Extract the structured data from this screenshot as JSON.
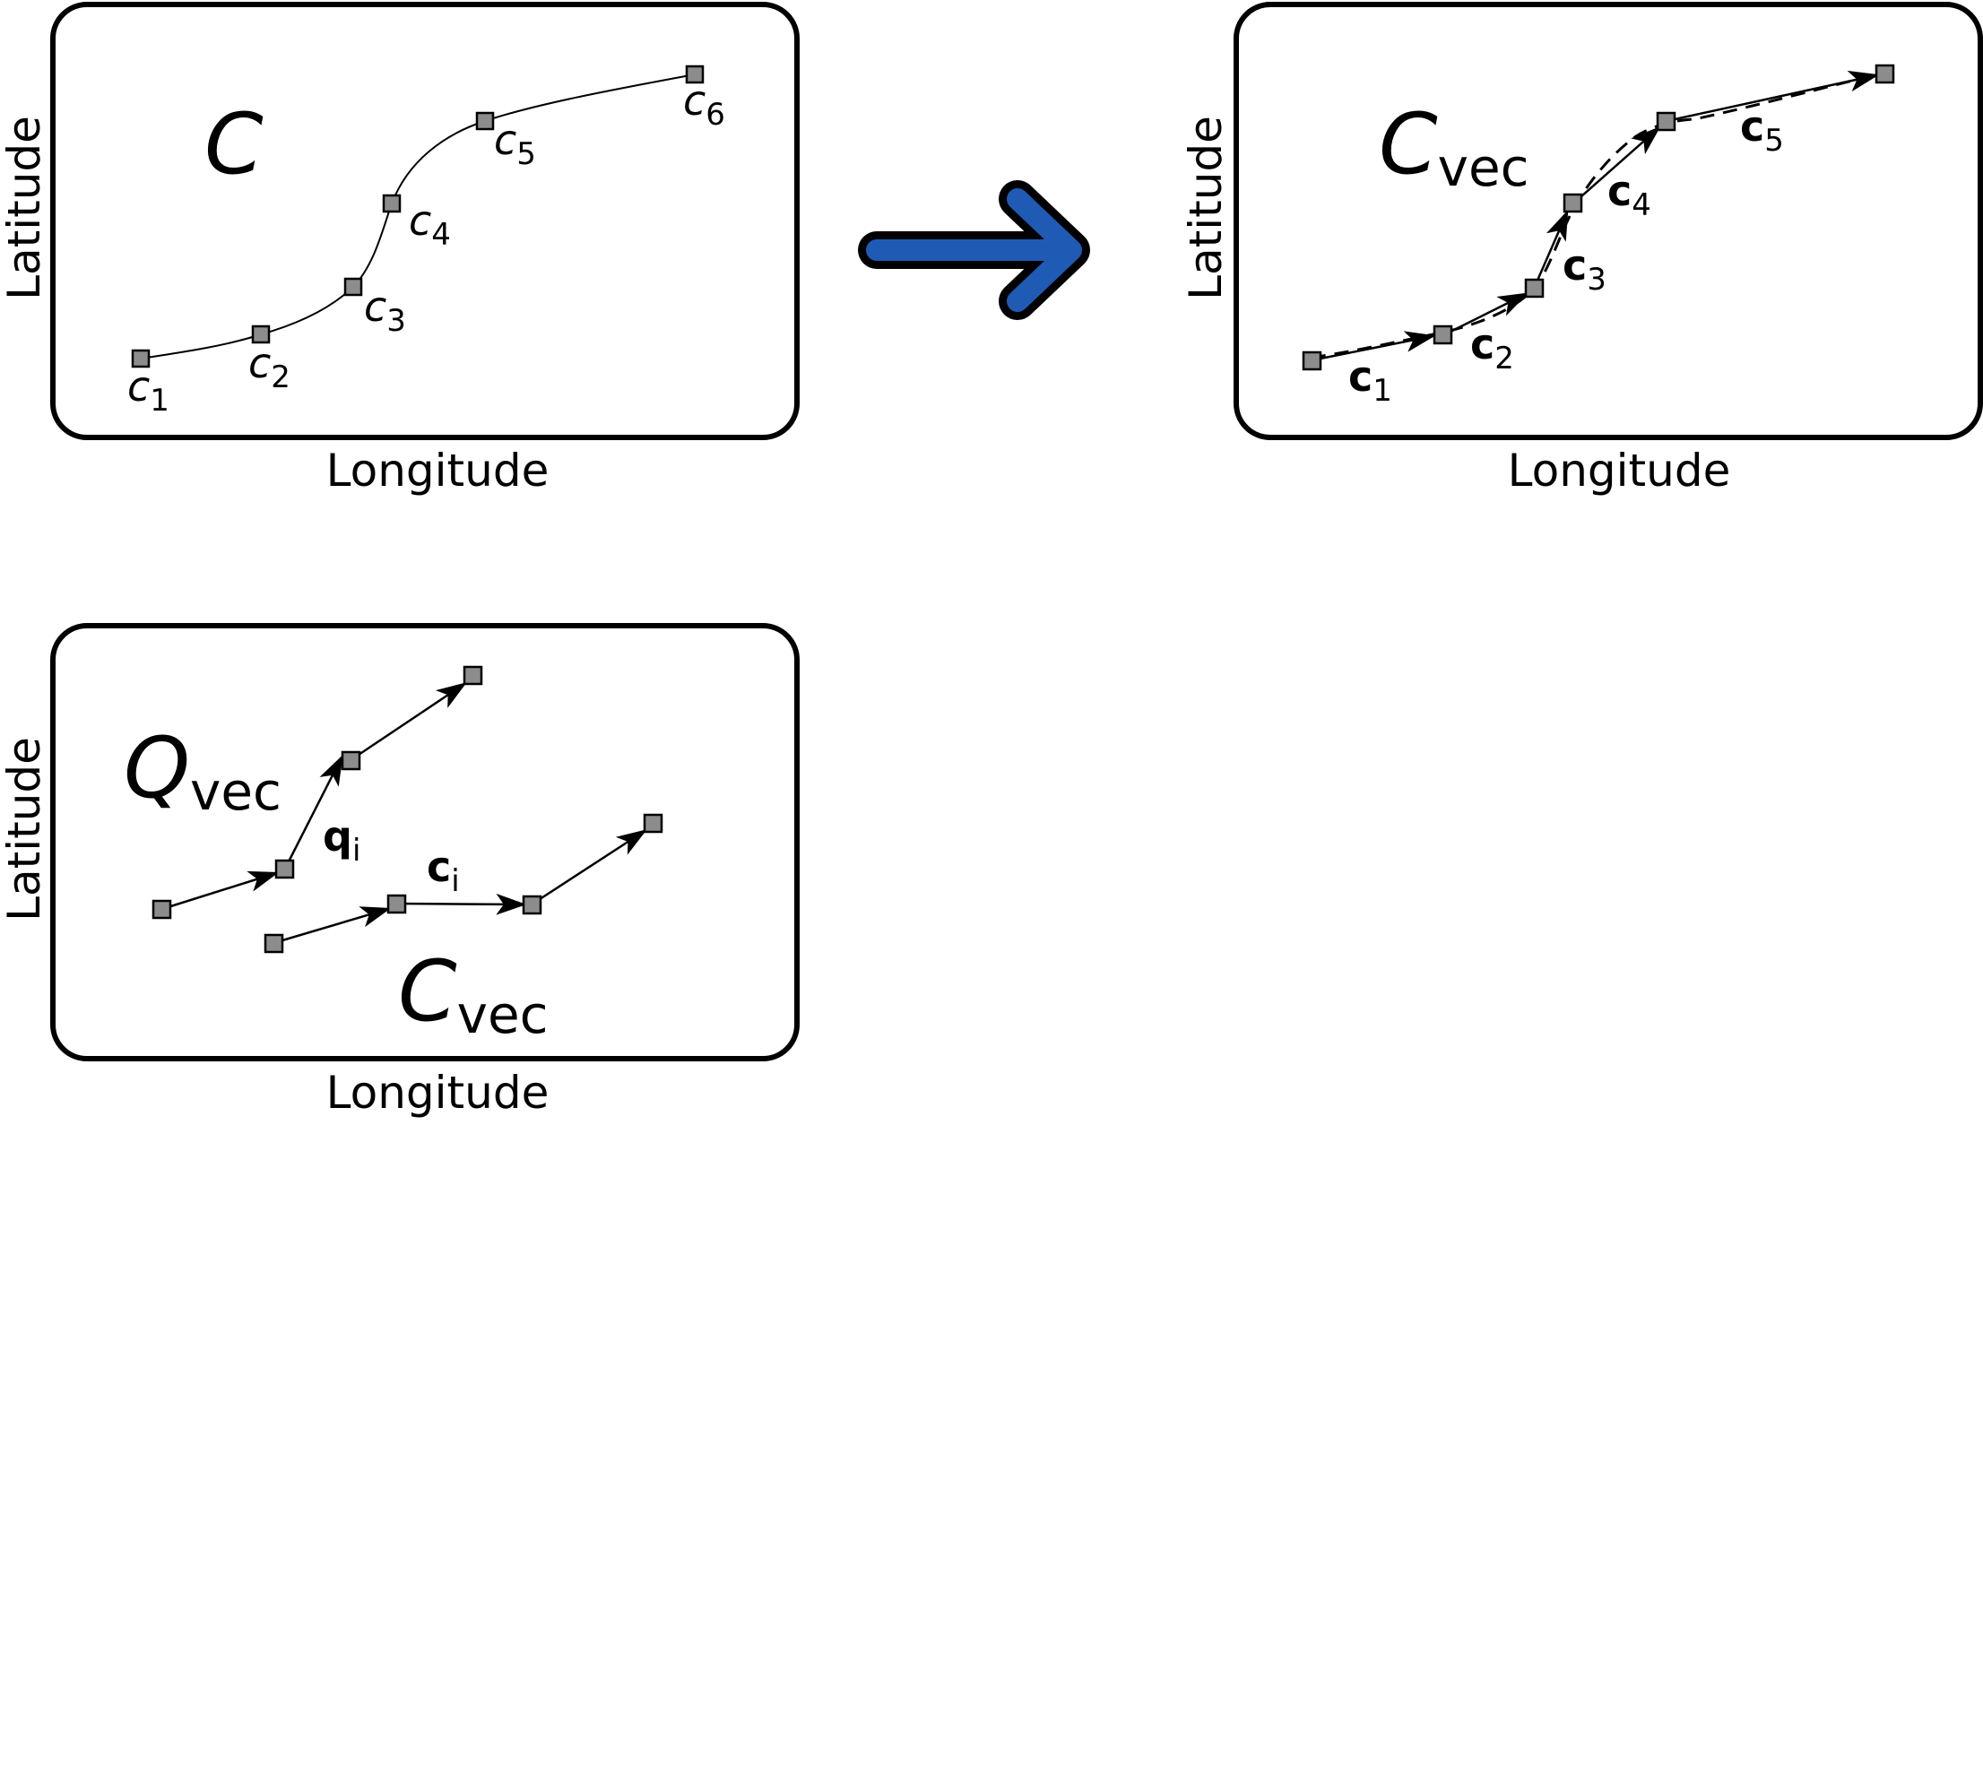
{
  "axes": {
    "x_label": "Longitude",
    "y_label": "Latitude"
  },
  "panel_a": {
    "title": "C",
    "points": [
      {
        "base": "c",
        "sub": "1"
      },
      {
        "base": "c",
        "sub": "2"
      },
      {
        "base": "c",
        "sub": "3"
      },
      {
        "base": "c",
        "sub": "4"
      },
      {
        "base": "c",
        "sub": "5"
      },
      {
        "base": "c",
        "sub": "6"
      }
    ]
  },
  "panel_b": {
    "title": "C",
    "title_sub": "vec",
    "vectors": [
      {
        "base": "c",
        "sub": "1"
      },
      {
        "base": "c",
        "sub": "2"
      },
      {
        "base": "c",
        "sub": "3"
      },
      {
        "base": "c",
        "sub": "4"
      },
      {
        "base": "c",
        "sub": "5"
      }
    ]
  },
  "panel_c": {
    "query_title": "Q",
    "query_sub": "vec",
    "query_vector": {
      "base": "q",
      "sub": "i"
    },
    "candidate_title": "C",
    "candidate_sub": "vec",
    "candidate_vector": {
      "base": "c",
      "sub": "i"
    }
  },
  "colors": {
    "transform_arrow": "#1f5bb5",
    "node_fill": "#8c8c8c"
  },
  "icons": {
    "transform_arrow": "right-arrow-icon"
  }
}
